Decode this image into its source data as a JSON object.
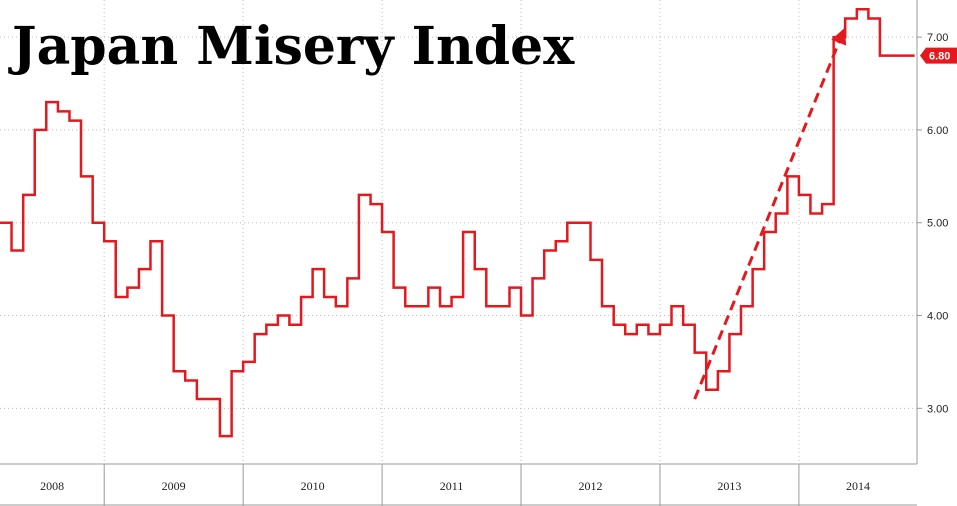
{
  "chart_data": {
    "type": "line",
    "title": "Japan Misery Index",
    "last_value_label": "6.80",
    "ylim": [
      2.4,
      7.4
    ],
    "yticks": [
      {
        "value": 3.0,
        "label": "3.00"
      },
      {
        "value": 4.0,
        "label": "4.00"
      },
      {
        "value": 5.0,
        "label": "5.00"
      },
      {
        "value": 6.0,
        "label": "6.00"
      },
      {
        "value": 7.0,
        "label": "7.00"
      }
    ],
    "xlim": [
      2008.0,
      2014.6
    ],
    "year_labels": [
      {
        "year": "2008",
        "start": 2008.0,
        "end": 2008.75
      },
      {
        "year": "2009",
        "start": 2008.75,
        "end": 2009.75
      },
      {
        "year": "2010",
        "start": 2009.75,
        "end": 2010.75
      },
      {
        "year": "2011",
        "start": 2010.75,
        "end": 2011.75
      },
      {
        "year": "2012",
        "start": 2011.75,
        "end": 2012.75
      },
      {
        "year": "2013",
        "start": 2012.75,
        "end": 2013.75
      },
      {
        "year": "2014",
        "start": 2013.75,
        "end": 2014.6
      }
    ],
    "grid": true,
    "colors": {
      "line": "#e3191e",
      "grid": "#bdbdbd",
      "axis": "#9a9a9a",
      "text": "#000000"
    },
    "series": [
      {
        "step": true,
        "x": [
          2008.0,
          2008.083,
          2008.167,
          2008.25,
          2008.333,
          2008.417,
          2008.5,
          2008.583,
          2008.667,
          2008.75,
          2008.833,
          2008.917,
          2009.0,
          2009.083,
          2009.167,
          2009.25,
          2009.333,
          2009.417,
          2009.5,
          2009.583,
          2009.667,
          2009.75,
          2009.833,
          2009.917,
          2010.0,
          2010.083,
          2010.167,
          2010.25,
          2010.333,
          2010.417,
          2010.5,
          2010.583,
          2010.667,
          2010.75,
          2010.833,
          2010.917,
          2011.0,
          2011.083,
          2011.167,
          2011.25,
          2011.333,
          2011.417,
          2011.5,
          2011.583,
          2011.667,
          2011.75,
          2011.833,
          2011.917,
          2012.0,
          2012.083,
          2012.167,
          2012.25,
          2012.333,
          2012.417,
          2012.5,
          2012.583,
          2012.667,
          2012.75,
          2012.833,
          2012.917,
          2013.0,
          2013.083,
          2013.167,
          2013.25,
          2013.333,
          2013.417,
          2013.5,
          2013.583,
          2013.667,
          2013.75,
          2013.833,
          2013.917,
          2014.0,
          2014.083,
          2014.167,
          2014.25,
          2014.333,
          2014.417,
          2014.5
        ],
        "values": [
          5.0,
          4.7,
          5.3,
          6.0,
          6.3,
          6.2,
          6.1,
          5.5,
          5.0,
          4.8,
          4.2,
          4.3,
          4.5,
          4.8,
          4.0,
          3.4,
          3.3,
          3.1,
          3.1,
          2.7,
          3.4,
          3.5,
          3.8,
          3.9,
          4.0,
          3.9,
          4.2,
          4.5,
          4.2,
          4.1,
          4.4,
          5.3,
          5.2,
          4.9,
          4.3,
          4.1,
          4.1,
          4.3,
          4.1,
          4.2,
          4.9,
          4.5,
          4.1,
          4.1,
          4.3,
          4.0,
          4.4,
          4.7,
          4.8,
          5.0,
          5.0,
          4.6,
          4.1,
          3.9,
          3.8,
          3.9,
          3.8,
          3.9,
          4.1,
          3.9,
          3.6,
          3.2,
          3.4,
          3.8,
          4.1,
          4.5,
          4.9,
          5.1,
          5.5,
          5.3,
          5.1,
          5.2,
          7.0,
          7.2,
          7.3,
          7.2,
          6.8,
          6.8,
          6.8
        ]
      }
    ],
    "annotations": [
      {
        "type": "dashed-arrow",
        "from": [
          2013.0,
          3.1
        ],
        "to": [
          2014.08,
          7.1
        ]
      }
    ]
  }
}
